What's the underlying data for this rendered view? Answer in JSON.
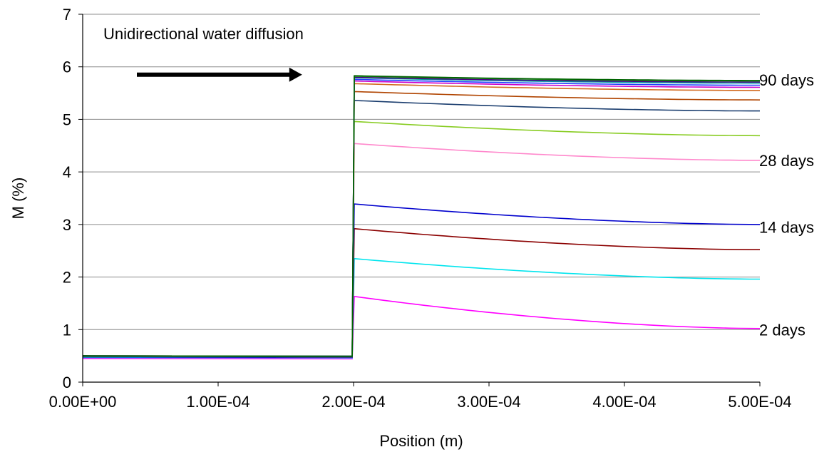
{
  "chart_data": {
    "type": "line",
    "title": "",
    "xlabel": "Position (m)",
    "ylabel": "M (%)",
    "xlim": [
      0,
      0.0005
    ],
    "ylim": [
      0,
      7
    ],
    "x_ticks": [
      0,
      0.0001,
      0.0002,
      0.0003,
      0.0004,
      0.0005
    ],
    "x_tick_labels": [
      "0.00E+00",
      "1.00E-04",
      "2.00E-04",
      "3.00E-04",
      "4.00E-04",
      "5.00E-04"
    ],
    "y_ticks": [
      0,
      1,
      2,
      3,
      4,
      5,
      6,
      7
    ],
    "y_tick_labels": [
      "0",
      "1",
      "2",
      "3",
      "4",
      "5",
      "6",
      "7"
    ],
    "grid": "horizontal",
    "annotation": "Unidirectional water diffusion",
    "arrow": {
      "from_x": 4e-05,
      "to_x": 0.000162,
      "y": 5.85
    },
    "step_x": 0.0002,
    "series": [
      {
        "color": "#ff00ff",
        "left": 0.45,
        "peak": 1.63,
        "end": 1.02
      },
      {
        "color": "#00e5ee",
        "left": 0.47,
        "peak": 2.35,
        "end": 1.96
      },
      {
        "color": "#8b0000",
        "left": 0.48,
        "peak": 2.92,
        "end": 2.52
      },
      {
        "color": "#0000cd",
        "left": 0.48,
        "peak": 3.39,
        "end": 3.0
      },
      {
        "color": "#ff88cc",
        "left": 0.49,
        "peak": 4.54,
        "end": 4.22
      },
      {
        "color": "#88cc22",
        "left": 0.49,
        "peak": 4.96,
        "end": 4.69
      },
      {
        "color": "#1a3d6e",
        "left": 0.49,
        "peak": 5.36,
        "end": 5.16
      },
      {
        "color": "#b04400",
        "left": 0.5,
        "peak": 5.53,
        "end": 5.37
      },
      {
        "color": "#d2691e",
        "left": 0.5,
        "peak": 5.68,
        "end": 5.55
      },
      {
        "color": "#cc00cc",
        "left": 0.5,
        "peak": 5.73,
        "end": 5.61
      },
      {
        "color": "#1e40ff",
        "left": 0.5,
        "peak": 5.76,
        "end": 5.65
      },
      {
        "color": "#00a0a0",
        "left": 0.5,
        "peak": 5.79,
        "end": 5.69
      },
      {
        "color": "#4b0082",
        "left": 0.5,
        "peak": 5.8,
        "end": 5.71
      },
      {
        "color": "#228b22",
        "left": 0.5,
        "peak": 5.82,
        "end": 5.73
      },
      {
        "color": "#006400",
        "left": 0.5,
        "peak": 5.83,
        "end": 5.74
      }
    ],
    "end_labels": [
      {
        "text": "90 days",
        "y": 5.75
      },
      {
        "text": "28 days",
        "y": 4.22
      },
      {
        "text": "14 days",
        "y": 2.95
      },
      {
        "text": "2 days",
        "y": 1.0
      }
    ]
  }
}
